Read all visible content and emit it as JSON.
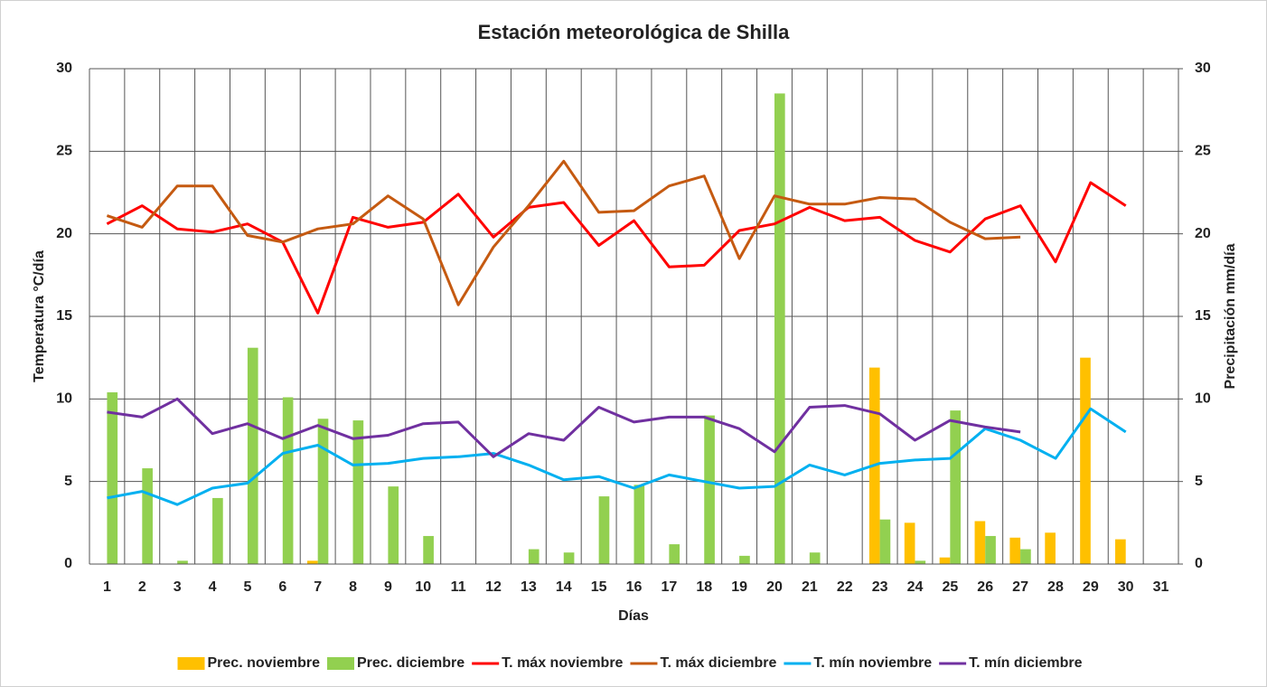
{
  "chart_data": {
    "type": "combo",
    "title": "Estación meteorológica de Shilla",
    "x_label": "Días",
    "y_label": "Temperatura °C/día",
    "y2_label": "Precipitación mm/día",
    "categories": [
      "1",
      "2",
      "3",
      "4",
      "5",
      "6",
      "7",
      "8",
      "9",
      "10",
      "11",
      "12",
      "13",
      "14",
      "15",
      "16",
      "17",
      "18",
      "19",
      "20",
      "21",
      "22",
      "23",
      "24",
      "25",
      "26",
      "27",
      "28",
      "29",
      "30",
      "31"
    ],
    "ylim": [
      0,
      30
    ],
    "yticks": [
      0,
      5,
      10,
      15,
      20,
      25,
      30
    ],
    "y2lim": [
      0,
      30
    ],
    "y2ticks": [
      0,
      5,
      10,
      15,
      20,
      25,
      30
    ],
    "grid": true,
    "legend": "bottom",
    "series": [
      {
        "name": "Prec. noviembre",
        "type": "bar",
        "axis": "y2",
        "color": "#ffc000",
        "values": [
          0,
          0,
          0,
          0,
          0,
          0,
          0.2,
          0,
          0,
          0,
          0,
          0,
          0,
          0,
          0,
          0,
          0,
          0,
          0,
          0,
          0,
          0,
          11.9,
          2.5,
          0.4,
          2.6,
          1.6,
          1.9,
          12.5,
          1.5,
          null
        ]
      },
      {
        "name": "Prec. diciembre",
        "type": "bar",
        "axis": "y2",
        "color": "#92d050",
        "values": [
          10.4,
          5.8,
          0.2,
          4.0,
          13.1,
          10.1,
          8.8,
          8.7,
          4.7,
          1.7,
          0,
          0,
          0.9,
          0.7,
          4.1,
          4.8,
          1.2,
          9.0,
          0.5,
          28.5,
          0.7,
          0,
          2.7,
          0.2,
          9.3,
          1.7,
          0.9,
          null,
          null,
          null,
          null
        ]
      },
      {
        "name": "T. máx noviembre",
        "type": "line",
        "color": "#ff0000",
        "values": [
          20.6,
          21.7,
          20.3,
          20.1,
          20.6,
          19.5,
          15.2,
          21.0,
          20.4,
          20.7,
          22.4,
          19.8,
          21.6,
          21.9,
          19.3,
          20.8,
          18.0,
          18.1,
          20.2,
          20.6,
          21.6,
          20.8,
          21.0,
          19.6,
          18.9,
          20.9,
          21.7,
          18.3,
          23.1,
          21.7,
          null
        ]
      },
      {
        "name": "T. máx diciembre",
        "type": "line",
        "color": "#c55a11",
        "values": [
          21.1,
          20.4,
          22.9,
          22.9,
          19.9,
          19.5,
          20.3,
          20.6,
          22.3,
          20.9,
          15.7,
          19.2,
          21.7,
          24.4,
          21.3,
          21.4,
          22.9,
          23.5,
          18.5,
          22.3,
          21.8,
          21.8,
          22.2,
          22.1,
          20.7,
          19.7,
          19.8,
          null,
          null,
          null,
          null
        ]
      },
      {
        "name": "T. mín noviembre",
        "type": "line",
        "color": "#00b0f0",
        "values": [
          4.0,
          4.4,
          3.6,
          4.6,
          4.9,
          6.7,
          7.2,
          6.0,
          6.1,
          6.4,
          6.5,
          6.7,
          6.0,
          5.1,
          5.3,
          4.6,
          5.4,
          5.0,
          4.6,
          4.7,
          6.0,
          5.4,
          6.1,
          6.3,
          6.4,
          8.2,
          7.5,
          6.4,
          9.4,
          8.0,
          null
        ]
      },
      {
        "name": "T. mín diciembre",
        "type": "line",
        "color": "#7030a0",
        "values": [
          9.2,
          8.9,
          10.0,
          7.9,
          8.5,
          7.6,
          8.4,
          7.6,
          7.8,
          8.5,
          8.6,
          6.5,
          7.9,
          7.5,
          9.5,
          8.6,
          8.9,
          8.9,
          8.2,
          6.8,
          9.5,
          9.6,
          9.1,
          7.5,
          8.7,
          8.3,
          8.0,
          null,
          null,
          null,
          null
        ]
      }
    ]
  }
}
